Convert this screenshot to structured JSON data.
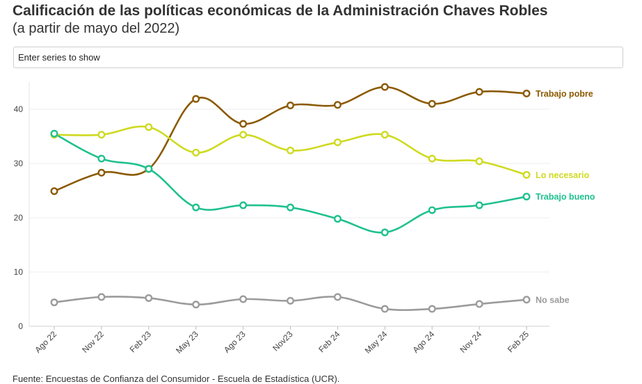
{
  "header": {
    "title": "Calificación de las políticas económicas de la Administración Chaves Robles",
    "subtitle": "(a partir de mayo del 2022)"
  },
  "search": {
    "placeholder": "Enter series to show"
  },
  "footer": {
    "source": "Fuente: Encuestas de Confianza del Consumidor - Escuela de Estadística (UCR)."
  },
  "chart_data": {
    "type": "line",
    "title": "Calificación de las políticas económicas de la Administración Chaves Robles",
    "subtitle": "(a partir de mayo del 2022)",
    "xlabel": "",
    "ylabel": "",
    "ylim": [
      0,
      45
    ],
    "yticks": [
      0,
      10,
      20,
      30,
      40
    ],
    "grid": true,
    "legend": "direct labels at line ends",
    "categories": [
      "Ago 22",
      "Nov 22",
      "Feb 23",
      "May 23",
      "Ago 23",
      "Nov23",
      "Feb 24",
      "May 24",
      "Ago 24",
      "Nov 24",
      "Feb 25"
    ],
    "series": [
      {
        "name": "Trabajo pobre",
        "color": "#8B5A00",
        "values": [
          24.9,
          28.3,
          29.0,
          41.9,
          37.3,
          40.7,
          40.8,
          44.1,
          41.0,
          43.2,
          42.9
        ]
      },
      {
        "name": "Lo necesario",
        "color": "#CFDA1F",
        "values": [
          35.3,
          35.3,
          36.7,
          32.0,
          35.3,
          32.4,
          33.9,
          35.3,
          30.9,
          30.4,
          27.9
        ]
      },
      {
        "name": "Trabajo bueno",
        "color": "#1FC18E",
        "values": [
          35.5,
          30.9,
          29.0,
          21.9,
          22.3,
          21.9,
          19.8,
          17.3,
          21.4,
          22.3,
          23.9
        ]
      },
      {
        "name": "No sabe",
        "color": "#9B9B9B",
        "values": [
          4.4,
          5.4,
          5.2,
          4.0,
          5.0,
          4.7,
          5.4,
          3.2,
          3.2,
          4.1,
          4.9
        ]
      }
    ]
  }
}
